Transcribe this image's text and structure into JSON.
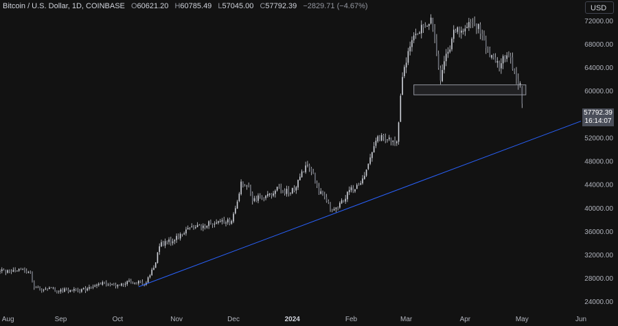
{
  "header": {
    "symbol": "Bitcoin / U.S. Dollar, 1D, COINBASE",
    "open_label": "O",
    "open": "60621.20",
    "high_label": "H",
    "high": "60785.49",
    "low_label": "L",
    "low": "57045.00",
    "close_label": "C",
    "close": "57792.39",
    "change": "−2829.71 (−4.67%)"
  },
  "currency_button": "USD",
  "last_price": {
    "price": "57792.39",
    "countdown": "16:14:07"
  },
  "colors": {
    "background": "#121212",
    "candle": "#d1d4dc",
    "trendline": "#2962ff",
    "zone": "#9598a1",
    "axis_text": "#b2b5be"
  },
  "chart_data": {
    "type": "candlestick",
    "y_axis": {
      "ylim": [
        22500,
        75500
      ],
      "ticks": [
        "24000.00",
        "28000.00",
        "32000.00",
        "36000.00",
        "40000.00",
        "44000.00",
        "48000.00",
        "52000.00",
        "56000.00",
        "60000.00",
        "64000.00",
        "68000.00",
        "72000.00"
      ]
    },
    "x_axis": {
      "range": [
        "2023-07-31",
        "2024-06-01"
      ],
      "ticks": [
        {
          "label": "Aug",
          "date": "2023-08-01"
        },
        {
          "label": "Sep",
          "date": "2023-09-01"
        },
        {
          "label": "Oct",
          "date": "2023-10-01"
        },
        {
          "label": "Nov",
          "date": "2023-11-01"
        },
        {
          "label": "Dec",
          "date": "2023-12-01"
        },
        {
          "label": "2024",
          "date": "2024-01-01"
        },
        {
          "label": "Feb",
          "date": "2024-02-01"
        },
        {
          "label": "Mar",
          "date": "2024-03-01"
        },
        {
          "label": "Apr",
          "date": "2024-04-01"
        },
        {
          "label": "May",
          "date": "2024-05-01"
        },
        {
          "label": "Jun",
          "date": "2024-06-01"
        }
      ]
    },
    "close_anchors": [
      [
        "2023-07-31",
        29200
      ],
      [
        "2023-08-10",
        29500
      ],
      [
        "2023-08-16",
        29100
      ],
      [
        "2023-08-18",
        26100
      ],
      [
        "2023-08-31",
        26000
      ],
      [
        "2023-09-12",
        25800
      ],
      [
        "2023-09-20",
        27100
      ],
      [
        "2023-09-30",
        26900
      ],
      [
        "2023-10-10",
        27400
      ],
      [
        "2023-10-15",
        26900
      ],
      [
        "2023-10-20",
        29600
      ],
      [
        "2023-10-23",
        33600
      ],
      [
        "2023-10-31",
        34600
      ],
      [
        "2023-11-09",
        36600
      ],
      [
        "2023-11-20",
        37400
      ],
      [
        "2023-11-30",
        37700
      ],
      [
        "2023-12-05",
        44000
      ],
      [
        "2023-12-08",
        44200
      ],
      [
        "2023-12-11",
        41400
      ],
      [
        "2023-12-18",
        41800
      ],
      [
        "2023-12-25",
        43500
      ],
      [
        "2023-12-31",
        42300
      ],
      [
        "2024-01-08",
        46900
      ],
      [
        "2024-01-11",
        46400
      ],
      [
        "2024-01-15",
        42800
      ],
      [
        "2024-01-22",
        39800
      ],
      [
        "2024-01-24",
        40000
      ],
      [
        "2024-01-31",
        42600
      ],
      [
        "2024-02-08",
        45300
      ],
      [
        "2024-02-14",
        51800
      ],
      [
        "2024-02-25",
        51600
      ],
      [
        "2024-02-28",
        62300
      ],
      [
        "2024-03-04",
        68300
      ],
      [
        "2024-03-14",
        72500
      ],
      [
        "2024-03-19",
        62100
      ],
      [
        "2024-03-26",
        70000
      ],
      [
        "2024-04-08",
        71700
      ],
      [
        "2024-04-12",
        67100
      ],
      [
        "2024-04-19",
        63900
      ],
      [
        "2024-04-23",
        66800
      ],
      [
        "2024-04-30",
        60600
      ],
      [
        "2024-05-01",
        57792.39
      ]
    ],
    "last_candle": {
      "date": "2024-05-01",
      "open": 60621.2,
      "high": 60785.49,
      "low": 57045.0,
      "close": 57792.39
    },
    "trendline": {
      "points": [
        [
          "2023-10-12",
          26500
        ],
        [
          "2024-06-01",
          54800
        ]
      ]
    },
    "support_zone": {
      "from": "2024-03-05",
      "to": "2024-05-03",
      "low": 59300,
      "high": 61000
    }
  }
}
